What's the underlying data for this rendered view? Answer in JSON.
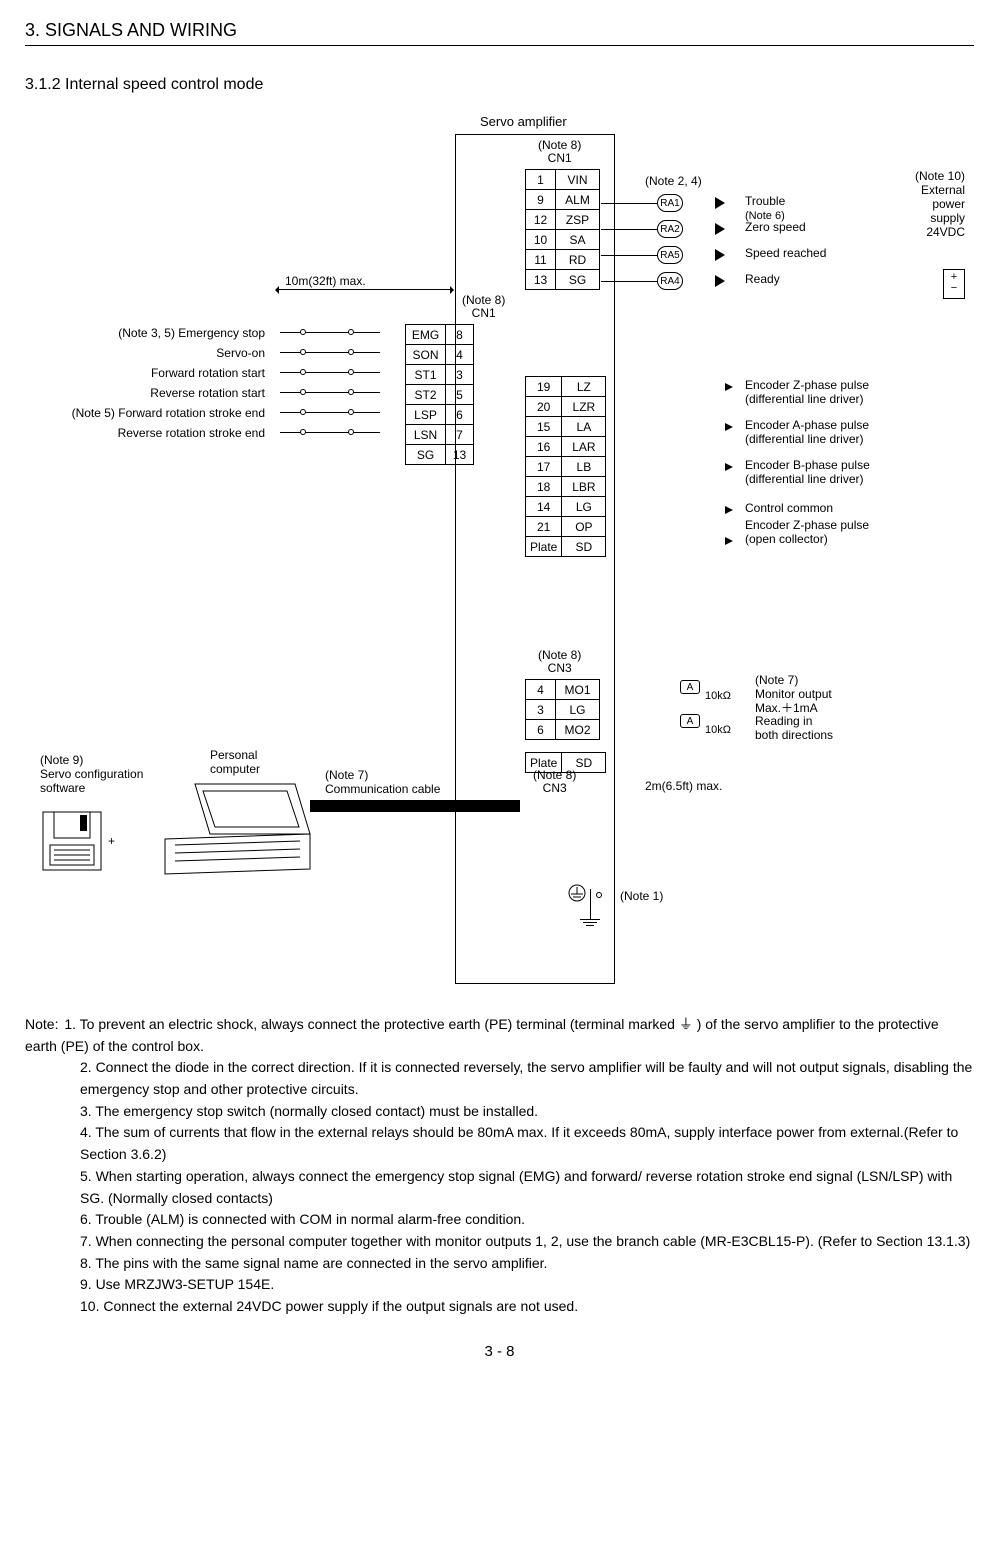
{
  "header": {
    "chapter": "3. SIGNALS AND WIRING",
    "section": "3.1.2 Internal speed control mode"
  },
  "diagram": {
    "amp_label": "Servo amplifier",
    "max_cable": "10m(32ft) max.",
    "cn1_note8": "(Note 8)",
    "cn1": "CN1",
    "cn3_note8": "(Note 8)",
    "cn3": "CN3",
    "inputs": [
      {
        "note": "(Note 3, 5)",
        "label": "Emergency stop",
        "sig": "EMG",
        "pin": "8"
      },
      {
        "note": "",
        "label": "Servo-on",
        "sig": "SON",
        "pin": "4"
      },
      {
        "note": "",
        "label": "Forward rotation start",
        "sig": "ST1",
        "pin": "3"
      },
      {
        "note": "",
        "label": "Reverse rotation start",
        "sig": "ST2",
        "pin": "5"
      },
      {
        "note": "(Note 5)",
        "label": "Forward rotation stroke end",
        "sig": "LSP",
        "pin": "6"
      },
      {
        "note": "",
        "label": "Reverse rotation stroke end",
        "sig": "LSN",
        "pin": "7"
      },
      {
        "note": "",
        "label": "",
        "sig": "SG",
        "pin": "13"
      }
    ],
    "outputs_top": [
      {
        "pin": "1",
        "sig": "VIN"
      },
      {
        "pin": "9",
        "sig": "ALM"
      },
      {
        "pin": "12",
        "sig": "ZSP"
      },
      {
        "pin": "10",
        "sig": "SA"
      },
      {
        "pin": "11",
        "sig": "RD"
      },
      {
        "pin": "13",
        "sig": "SG"
      }
    ],
    "relays": [
      {
        "name": "RA1",
        "desc": "Trouble",
        "note": "(Note 6)"
      },
      {
        "name": "RA2",
        "desc": "Zero speed",
        "note": ""
      },
      {
        "name": "RA5",
        "desc": "Speed reached",
        "note": ""
      },
      {
        "name": "RA4",
        "desc": "Ready",
        "note": ""
      }
    ],
    "note24": "(Note 2, 4)",
    "power": {
      "note": "(Note 10)",
      "l1": "External",
      "l2": "power",
      "l3": "supply",
      "l4": "24VDC",
      "plus": "+",
      "minus": "−"
    },
    "encoder_rows": [
      {
        "pin": "19",
        "sig": "LZ"
      },
      {
        "pin": "20",
        "sig": "LZR"
      },
      {
        "pin": "15",
        "sig": "LA"
      },
      {
        "pin": "16",
        "sig": "LAR"
      },
      {
        "pin": "17",
        "sig": "LB"
      },
      {
        "pin": "18",
        "sig": "LBR"
      },
      {
        "pin": "14",
        "sig": "LG"
      },
      {
        "pin": "21",
        "sig": "OP"
      },
      {
        "pin": "Plate",
        "sig": "SD"
      }
    ],
    "encoder_labels": [
      "Encoder Z-phase pulse",
      "(differential line driver)",
      "Encoder A-phase pulse",
      "(differential line driver)",
      "Encoder B-phase pulse",
      "(differential line driver)",
      "Control common",
      "Encoder Z-phase pulse",
      "(open collector)"
    ],
    "cn3_rows": [
      {
        "pin": "4",
        "sig": "MO1"
      },
      {
        "pin": "3",
        "sig": "LG"
      },
      {
        "pin": "6",
        "sig": "MO2"
      }
    ],
    "cn3_plate": {
      "pin": "Plate",
      "sig": "SD"
    },
    "cn3_max": "2m(6.5ft) max.",
    "monitor": {
      "note": "(Note 7)",
      "l1": "Monitor output",
      "l2": "Max.＋1mA",
      "l3": "Reading in",
      "l4": "both directions",
      "A": "A",
      "r": "10kΩ"
    },
    "pc": {
      "note9": "(Note 9)",
      "l1": "Servo configuration",
      "l2": "software",
      "pc": "Personal",
      "pc2": "computer",
      "note7": "(Note 7)",
      "comm": "Communication cable"
    },
    "note1": "(Note 1)"
  },
  "notes": {
    "lead": "Note:",
    "items": [
      "1. To prevent an electric shock, always connect the protective earth (PE) terminal (terminal marked ⏚ ) of the servo amplifier to the protective earth (PE) of the control box.",
      "2. Connect the diode in the correct direction. If it is connected reversely, the servo amplifier will be faulty and will not output signals, disabling the emergency stop and other protective circuits.",
      "3. The emergency stop switch (normally closed contact) must be installed.",
      "4. The sum of currents that flow in the external relays should be 80mA max. If it exceeds 80mA, supply interface power from external.(Refer to Section 3.6.2)",
      "5. When starting operation, always connect the emergency stop signal (EMG) and forward/ reverse rotation stroke end signal (LSN/LSP) with SG. (Normally closed contacts)",
      "6. Trouble (ALM) is connected with COM in normal alarm-free condition.",
      "7. When connecting the personal computer together with monitor outputs 1, 2, use the branch cable (MR-E3CBL15-P). (Refer to Section 13.1.3)",
      "8. The pins with the same signal name are connected in the servo amplifier.",
      "9. Use MRZJW3-SETUP 154E.",
      "10. Connect the external 24VDC power supply if the output signals are not used."
    ]
  },
  "page": "3 -  8"
}
